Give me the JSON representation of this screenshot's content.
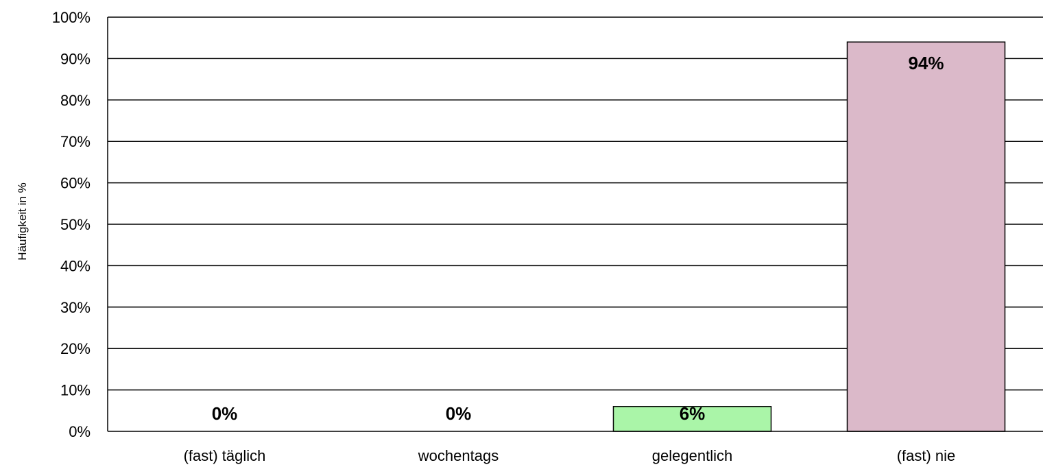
{
  "chart_data": {
    "type": "bar",
    "categories": [
      "(fast) täglich",
      "wochentags",
      "gelegentlich",
      "(fast) nie"
    ],
    "values": [
      0,
      0,
      6,
      94
    ],
    "data_labels": [
      "0%",
      "0%",
      "6%",
      "94%"
    ],
    "colors": [
      "#ffffff",
      "#ffffff",
      "#aaf5a8",
      "#dbb9c9"
    ],
    "xlabel": "",
    "ylabel": "Häufigkeit in %",
    "ylim": [
      0,
      100
    ],
    "yticks": [
      0,
      10,
      20,
      30,
      40,
      50,
      60,
      70,
      80,
      90,
      100
    ],
    "ytick_labels": [
      "0%",
      "10%",
      "20%",
      "30%",
      "40%",
      "50%",
      "60%",
      "70%",
      "80%",
      "90%",
      "100%"
    ],
    "grid": true,
    "legend": "none"
  }
}
